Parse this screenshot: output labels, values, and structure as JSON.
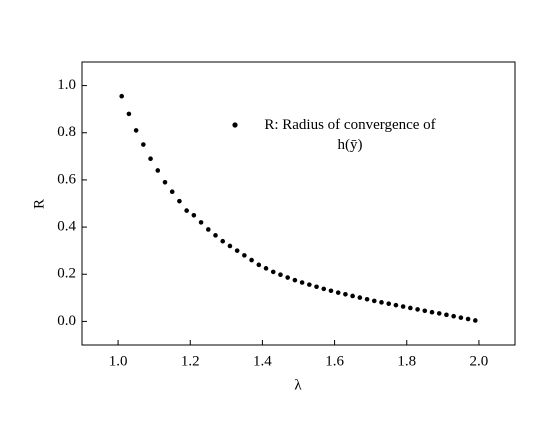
{
  "chart_data": {
    "type": "scatter",
    "xlabel": "λ",
    "ylabel": "R",
    "xlim": [
      0.9,
      2.1
    ],
    "xticks": [
      {
        "value": 1,
        "label": "1.0"
      },
      1.2,
      1.4,
      1.6,
      1.8,
      {
        "value": 2,
        "label": "2.0"
      }
    ],
    "ylim": [
      -0.1,
      1.1
    ],
    "yticks": [
      {
        "value": 0,
        "label": "0.0"
      },
      0.2,
      0.4,
      0.6,
      0.8,
      {
        "value": 1,
        "label": "1.0"
      }
    ],
    "series": [
      {
        "name": "R: Radius of convergence of h(ȳ)",
        "color": "#000000",
        "x": [
          1.01,
          1.03,
          1.05,
          1.07,
          1.09,
          1.11,
          1.13,
          1.15,
          1.17,
          1.19,
          1.21,
          1.23,
          1.25,
          1.27,
          1.29,
          1.31,
          1.33,
          1.35,
          1.37,
          1.39,
          1.41,
          1.43,
          1.45,
          1.47,
          1.49,
          1.51,
          1.53,
          1.55,
          1.57,
          1.59,
          1.61,
          1.63,
          1.65,
          1.67,
          1.69,
          1.71,
          1.73,
          1.75,
          1.77,
          1.79,
          1.81,
          1.83,
          1.85,
          1.87,
          1.89,
          1.91,
          1.93,
          1.95,
          1.97,
          1.99
        ],
        "values": [
          0.955,
          0.88,
          0.81,
          0.75,
          0.69,
          0.64,
          0.59,
          0.55,
          0.51,
          0.47,
          0.45,
          0.42,
          0.39,
          0.365,
          0.34,
          0.32,
          0.3,
          0.28,
          0.26,
          0.24,
          0.225,
          0.21,
          0.198,
          0.186,
          0.175,
          0.165,
          0.156,
          0.147,
          0.138,
          0.13,
          0.122,
          0.115,
          0.108,
          0.101,
          0.094,
          0.087,
          0.081,
          0.075,
          0.069,
          0.063,
          0.057,
          0.051,
          0.045,
          0.039,
          0.034,
          0.028,
          0.022,
          0.016,
          0.01,
          0.004
        ]
      }
    ]
  }
}
